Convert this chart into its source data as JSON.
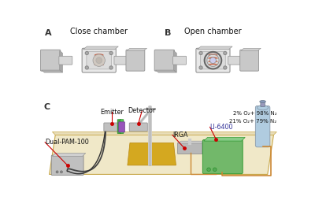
{
  "title_A": "Close chamber",
  "title_B": "Open chamber",
  "label_C": "C",
  "label_A": "A",
  "label_B": "B",
  "bg_color": "#ffffff",
  "table_color": "#e8ddb8",
  "table_edge": "#c8a84a",
  "table_top_color": "#f0e8c8",
  "dual_pam_color": "#c0c0c0",
  "irga_color": "#b8b8b8",
  "li6400_color": "#72b86a",
  "cylinder_color": "#b0cce0",
  "cylinder_valve": "#8899bb",
  "yellow_pad": "#d4a820",
  "annotation_color": "#cc0000",
  "text_color": "#111111",
  "gas_text1": "2% O₂+ 98% N₂",
  "gas_text2": "21% O₂+ 79% N₂",
  "label_emitter": "Emitter",
  "label_detector": "Detector",
  "label_irga": "IRGA",
  "label_li6400": "LI-6400",
  "label_dual_pam": "Dual-PAM-100",
  "chamber_gray1": "#c8c8c8",
  "chamber_gray2": "#d8d8d8",
  "chamber_inner": "#e8e8e8",
  "chamber_metal": "#b8b8c0",
  "wire_color": "#555555",
  "orange_wire": "#cc8833",
  "green_leaf": "#44aa44",
  "purple_clip": "#9955bb"
}
